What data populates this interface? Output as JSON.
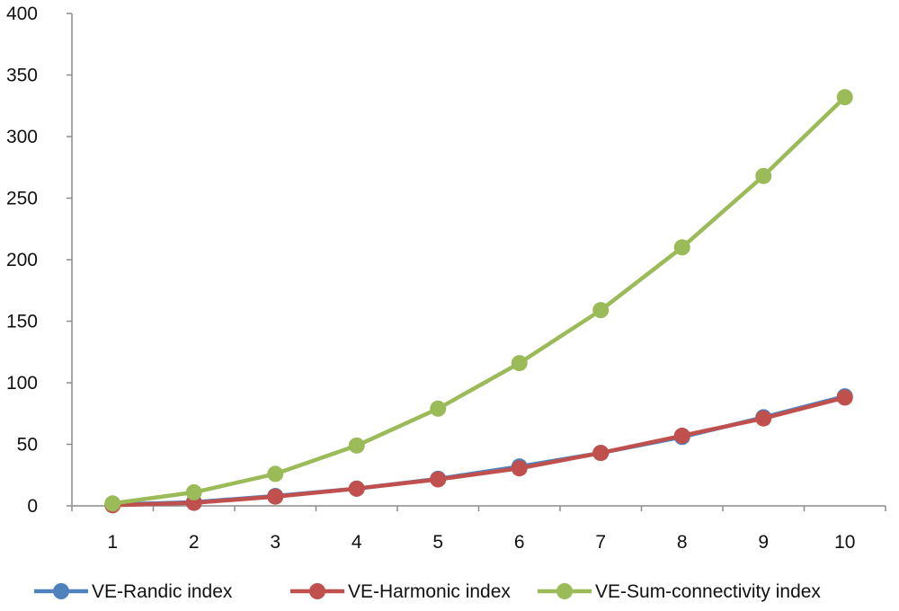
{
  "chart_data": {
    "type": "line",
    "title": "",
    "xlabel": "",
    "ylabel": "",
    "categories": [
      "1",
      "2",
      "3",
      "4",
      "5",
      "6",
      "7",
      "8",
      "9",
      "10"
    ],
    "ylim": [
      0,
      400
    ],
    "yticks": [
      "0",
      "50",
      "100",
      "150",
      "200",
      "250",
      "300",
      "350",
      "400"
    ],
    "grid": false,
    "legend_position": "bottom",
    "series": [
      {
        "name": "VE-Randic index",
        "color": "#4f81bd",
        "values": [
          1,
          3,
          8,
          14,
          22,
          32,
          43,
          56,
          72,
          89
        ]
      },
      {
        "name": "VE-Harmonic index",
        "color": "#c0504d",
        "values": [
          0.5,
          2.5,
          7.5,
          14,
          21.5,
          30.5,
          43,
          57,
          71,
          88
        ]
      },
      {
        "name": "VE-Sum-connectivity index",
        "color": "#9bbb59",
        "values": [
          2,
          11,
          26,
          49,
          79,
          116,
          159,
          210,
          268,
          332
        ]
      }
    ]
  }
}
